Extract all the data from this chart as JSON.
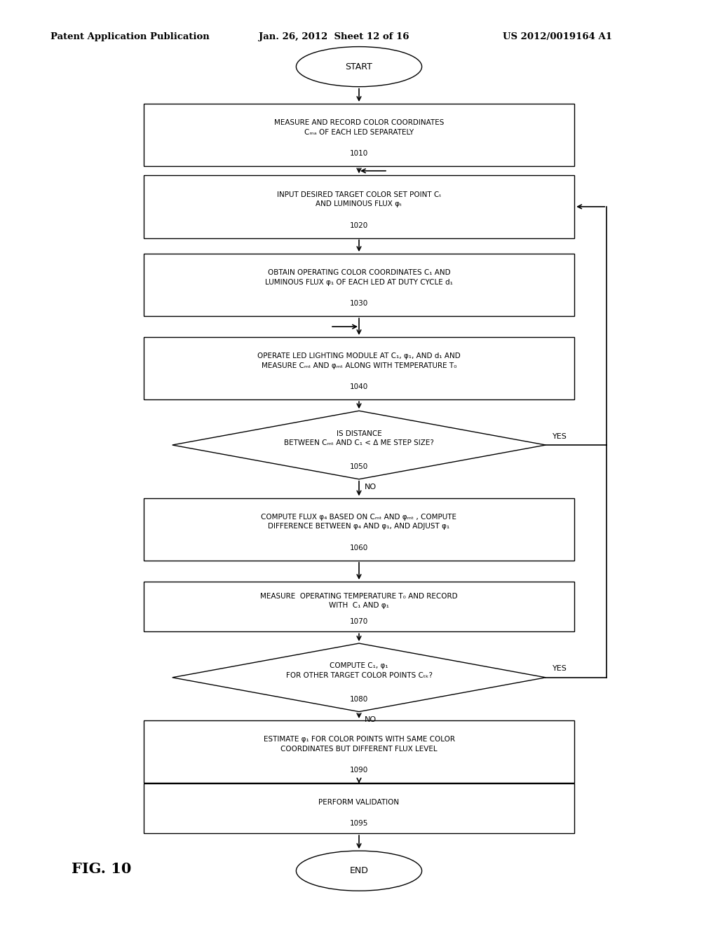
{
  "title_left": "Patent Application Publication",
  "title_mid": "Jan. 26, 2012  Sheet 12 of 16",
  "title_right": "US 2012/0019164 A1",
  "fig_label": "FIG. 10",
  "background_color": "#ffffff"
}
